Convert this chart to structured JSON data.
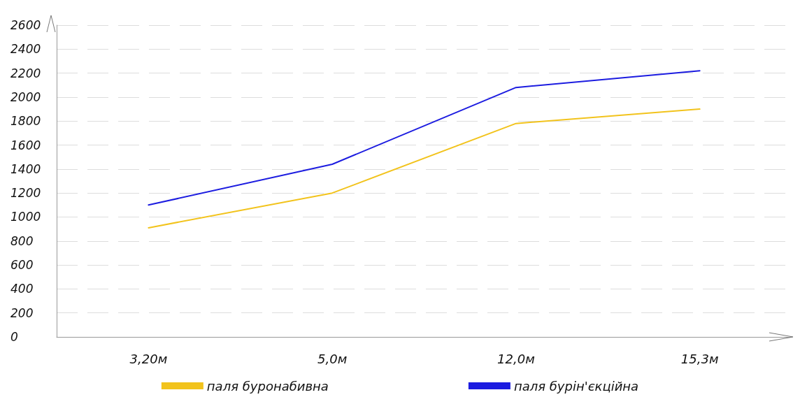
{
  "chart_data": {
    "type": "line",
    "categories": [
      "3,20м",
      "5,0м",
      "12,0м",
      "15,3м"
    ],
    "series": [
      {
        "name": "паля буронабивна",
        "color": "#f2c31c",
        "values": [
          910,
          1200,
          1780,
          1900
        ]
      },
      {
        "name": "паля бурін'єкційна",
        "color": "#1c1ce0",
        "values": [
          1100,
          1440,
          2080,
          2220
        ]
      }
    ],
    "ylim": [
      0,
      2600
    ],
    "yticks": [
      0,
      200,
      400,
      600,
      800,
      1000,
      1200,
      1400,
      1600,
      1800,
      2000,
      2200,
      2400,
      2600
    ],
    "grid": "y",
    "legend": "bottom",
    "marker": "none",
    "line_style": "solid"
  }
}
